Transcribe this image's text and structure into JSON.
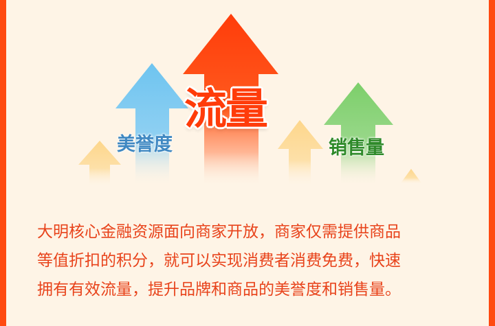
{
  "colors": {
    "background": "#fef4e6",
    "border": "#ff4a10",
    "arrow_blue": "#6ec4f0",
    "arrow_red": "#ff3c0a",
    "arrow_green": "#7ccf6a",
    "arrow_yellow": "#fdd68b",
    "text": "#e8431b"
  },
  "labels": {
    "reputation": "美誉度",
    "traffic": "流量",
    "sales": "销售量"
  },
  "description": {
    "line1": "大明核心金融资源面向商家开放，商家仅需提供商品",
    "line2": "等值折扣的积分，就可以实现消费者消费免费，快速",
    "line3": "拥有有效流量，提升品牌和商品的美誉度和销售量。"
  }
}
